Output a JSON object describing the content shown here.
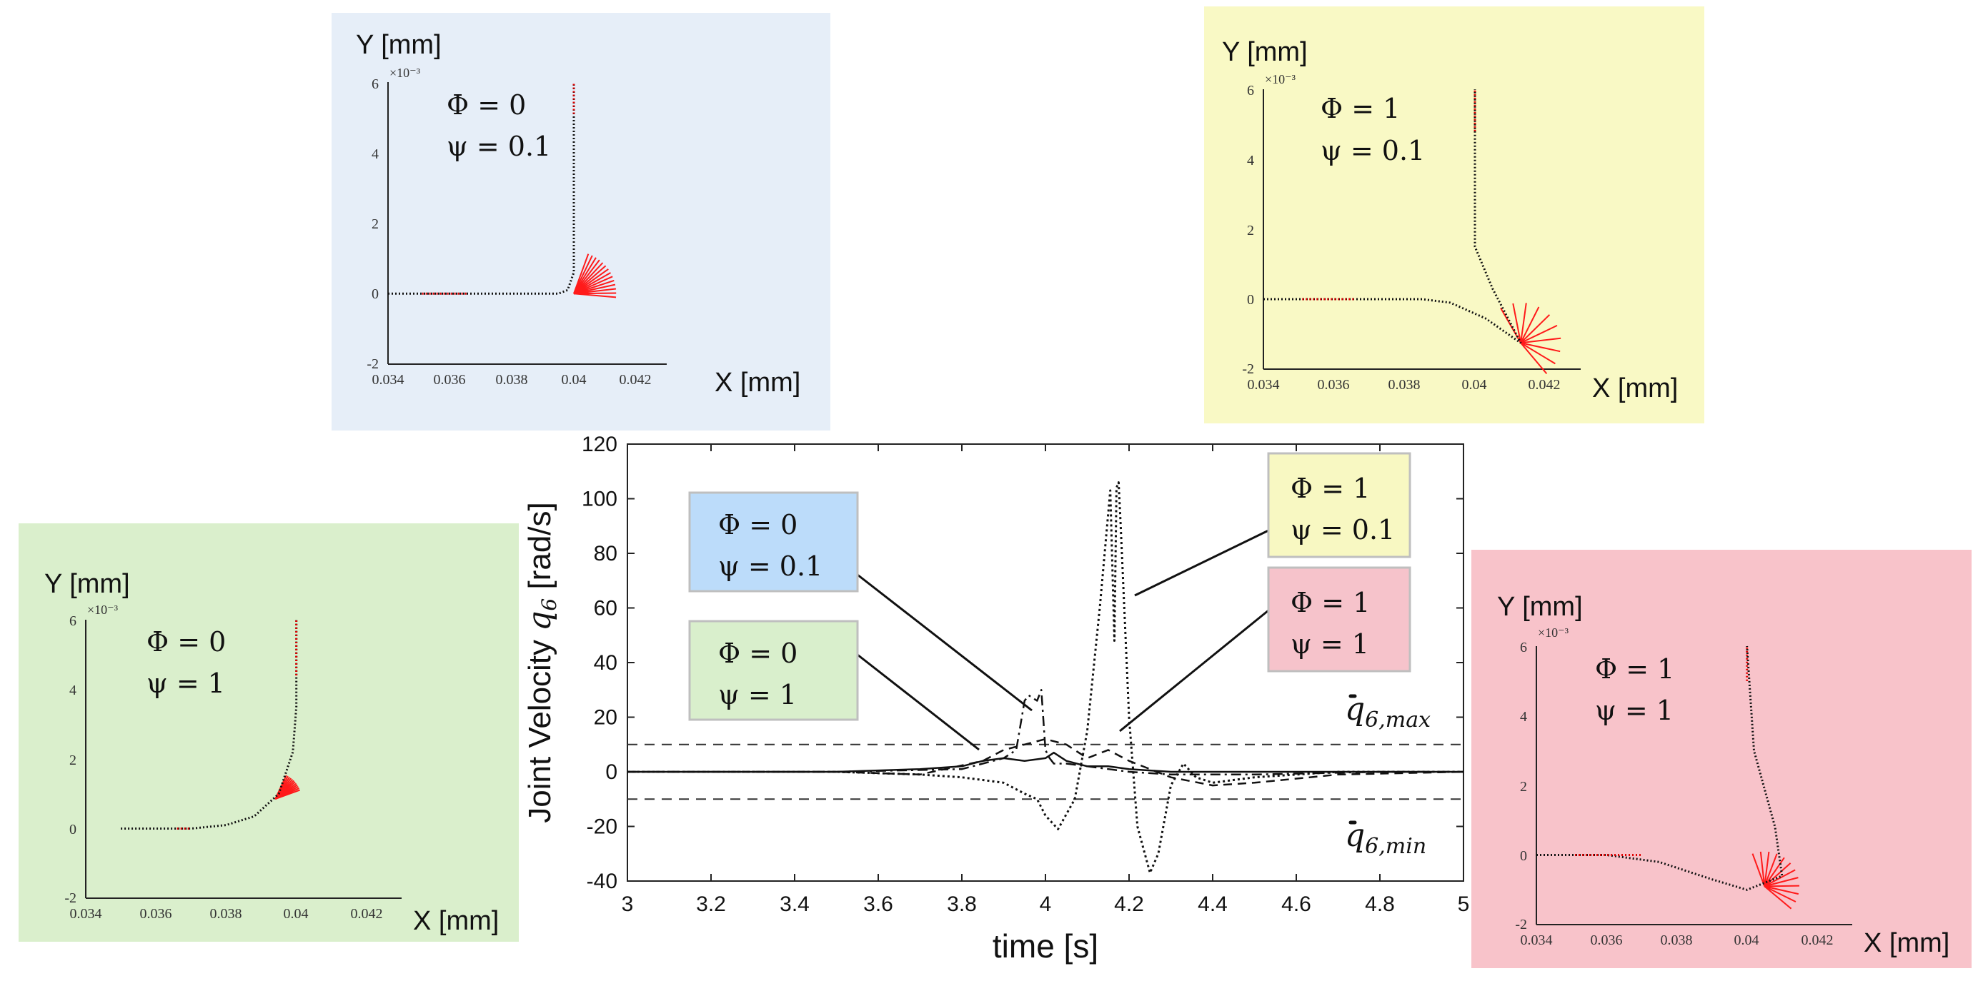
{
  "chart_data": [
    {
      "type": "line",
      "name": "joint-velocity",
      "title": "",
      "xlabel": "time [s]",
      "ylabel": "Joint Velocity q̇₆ [rad/s]",
      "ylabel_parts": {
        "prefix": "Joint Velocity ",
        "symbol": "q",
        "subscript": "6",
        "suffix": " [rad/s]"
      },
      "xlim": [
        3,
        5
      ],
      "ylim": [
        -40,
        120
      ],
      "xticks": [
        3,
        3.2,
        3.4,
        3.6,
        3.8,
        4,
        4.2,
        4.4,
        4.6,
        4.8,
        5
      ],
      "yticks": [
        -40,
        -20,
        0,
        20,
        40,
        60,
        80,
        100,
        120
      ],
      "limits": [
        {
          "name": "q6,max",
          "symbol": "q",
          "subscript": "6,max",
          "value": 10
        },
        {
          "name": "q6,min",
          "symbol": "q",
          "subscript": "6,min",
          "value": -10
        }
      ],
      "series": [
        {
          "name": "Φ = 0, ψ = 0.1",
          "style": "dashdot",
          "x": [
            3,
            3.5,
            3.8,
            3.9,
            3.93,
            3.95,
            3.96,
            3.97,
            3.98,
            3.99,
            4.0,
            4.01,
            4.02,
            4.05,
            4.1,
            4.2,
            4.3,
            4.5,
            4.8,
            5
          ],
          "y": [
            0,
            0,
            1,
            5,
            8,
            26,
            28,
            27,
            26,
            30,
            8,
            5,
            3,
            3,
            2,
            0,
            -1,
            -1,
            0,
            0
          ]
        },
        {
          "name": "Φ = 0, ψ = 1",
          "style": "solid",
          "x": [
            3,
            3.5,
            3.7,
            3.8,
            3.85,
            3.9,
            3.95,
            4.0,
            4.02,
            4.05,
            4.1,
            4.15,
            4.2,
            4.3,
            4.5,
            4.8,
            5
          ],
          "y": [
            0,
            0,
            1,
            2,
            4,
            5,
            4,
            5,
            7,
            4,
            2,
            2,
            1,
            0,
            0,
            0,
            0
          ]
        },
        {
          "name": "Φ = 1, ψ = 0.1",
          "style": "dotted",
          "x": [
            3,
            3.5,
            3.7,
            3.8,
            3.9,
            3.95,
            3.98,
            4.0,
            4.03,
            4.07,
            4.1,
            4.13,
            4.155,
            4.165,
            4.17,
            4.175,
            4.18,
            4.2,
            4.22,
            4.25,
            4.27,
            4.3,
            4.33,
            4.36,
            4.4,
            4.5,
            4.7,
            5
          ],
          "y": [
            0,
            0,
            -1,
            -2,
            -4,
            -8,
            -10,
            -16,
            -21,
            -10,
            15,
            60,
            103,
            48,
            104,
            106,
            90,
            20,
            -20,
            -37,
            -30,
            -5,
            3,
            -2,
            -4,
            -2,
            0,
            0
          ]
        },
        {
          "name": "Φ = 1, ψ = 1",
          "style": "dashed",
          "x": [
            3,
            3.5,
            3.7,
            3.85,
            3.9,
            3.95,
            4.0,
            4.05,
            4.1,
            4.15,
            4.2,
            4.3,
            4.4,
            4.5,
            4.7,
            5
          ],
          "y": [
            0,
            0,
            -1,
            4,
            8,
            10,
            12,
            10,
            5,
            8,
            4,
            -2,
            -5,
            -4,
            -1,
            0
          ]
        }
      ],
      "annotations": [
        {
          "phi": "Φ = 0",
          "psi": "ψ = 0.1",
          "color": "#bcdcfa"
        },
        {
          "phi": "Φ = 0",
          "psi": "ψ = 1",
          "color": "#d9efcc"
        },
        {
          "phi": "Φ = 1",
          "psi": "ψ = 0.1",
          "color": "#f8f8c2"
        },
        {
          "phi": "Φ = 1",
          "psi": "ψ = 1",
          "color": "#f6c3cb"
        }
      ]
    },
    {
      "type": "line",
      "name": "path-phi0-psi01",
      "background": "#e6eef8",
      "phi": "Φ = 0",
      "psi": "ψ = 0.1",
      "xlabel": "X [mm]",
      "ylabel": "Y [mm]",
      "y_exponent": "×10⁻³",
      "xlim": [
        0.034,
        0.043
      ],
      "ylim": [
        -2,
        6
      ],
      "xticks": [
        "0.034",
        "0.036",
        "0.038",
        "0.04",
        "0.042"
      ],
      "yticks": [
        "-2",
        "0",
        "2",
        "4",
        "6"
      ],
      "path": [
        [
          0.034,
          0
        ],
        [
          0.0395,
          0
        ],
        [
          0.0398,
          0.1
        ],
        [
          0.04,
          0.6
        ],
        [
          0.04,
          6
        ]
      ],
      "red_x_segments": [
        [
          0.0351,
          0.0366
        ]
      ],
      "red_y_segments": [
        [
          5.1,
          6
        ]
      ],
      "fan": {
        "origin": [
          0.04,
          0
        ],
        "count": 14,
        "angle_start": -5,
        "angle_end": 70,
        "length": 1.2
      }
    },
    {
      "type": "line",
      "name": "path-phi1-psi01",
      "background": "#f9f9c5",
      "phi": "Φ = 1",
      "psi": "ψ = 0.1",
      "xlabel": "X [mm]",
      "ylabel": "Y [mm]",
      "y_exponent": "×10⁻³",
      "xlim": [
        0.034,
        0.043
      ],
      "ylim": [
        -2,
        6
      ],
      "xticks": [
        "0.034",
        "0.036",
        "0.038",
        "0.04",
        "0.042"
      ],
      "yticks": [
        "-2",
        "0",
        "2",
        "4",
        "6"
      ],
      "path": [
        [
          0.034,
          0
        ],
        [
          0.0385,
          0
        ],
        [
          0.0393,
          -0.1
        ],
        [
          0.0403,
          -0.55
        ],
        [
          0.0413,
          -1.25
        ],
        [
          0.0405,
          0.3
        ],
        [
          0.04,
          1.5
        ],
        [
          0.04,
          6
        ]
      ],
      "red_x_segments": [
        [
          0.0351,
          0.0366
        ]
      ],
      "red_y_segments": [
        [
          4.8,
          6
        ]
      ],
      "fan": {
        "origin": [
          0.0413,
          -1.25
        ],
        "count": 10,
        "angle_start": -50,
        "angle_end": 120,
        "length": 1.15
      }
    },
    {
      "type": "line",
      "name": "path-phi0-psi1",
      "background": "#daefcc",
      "phi": "Φ = 0",
      "psi": "ψ = 1",
      "xlabel": "X [mm]",
      "ylabel": "Y [mm]",
      "y_exponent": "×10⁻³",
      "xlim": [
        0.034,
        0.043
      ],
      "ylim": [
        -2,
        6
      ],
      "xticks": [
        "0.034",
        "0.036",
        "0.038",
        "0.04",
        "0.042"
      ],
      "yticks": [
        "-2",
        "0",
        "2",
        "4",
        "6"
      ],
      "path": [
        [
          0.035,
          0
        ],
        [
          0.037,
          0
        ],
        [
          0.038,
          0.1
        ],
        [
          0.0388,
          0.35
        ],
        [
          0.0395,
          1.0
        ],
        [
          0.0399,
          2.2
        ],
        [
          0.04,
          3.5
        ],
        [
          0.04,
          6
        ]
      ],
      "red_x_segments": [
        [
          0.0366,
          0.037
        ]
      ],
      "red_y_segments": [
        [
          4.4,
          6
        ]
      ],
      "fan": {
        "origin": [
          0.0394,
          0.85
        ],
        "count": 12,
        "angle_start": 20,
        "angle_end": 65,
        "length": 0.75
      }
    },
    {
      "type": "line",
      "name": "path-phi1-psi1",
      "background": "#f8c3ca",
      "phi": "Φ = 1",
      "psi": "ψ = 1",
      "xlabel": "X [mm]",
      "ylabel": "Y [mm]",
      "y_exponent": "×10⁻³",
      "xlim": [
        0.034,
        0.043
      ],
      "ylim": [
        -2,
        6
      ],
      "xticks": [
        "0.034",
        "0.036",
        "0.038",
        "0.04",
        "0.042"
      ],
      "yticks": [
        "-2",
        "0",
        "2",
        "4",
        "6"
      ],
      "path": [
        [
          0.034,
          0
        ],
        [
          0.036,
          0
        ],
        [
          0.0375,
          -0.2
        ],
        [
          0.039,
          -0.7
        ],
        [
          0.04,
          -1.0
        ],
        [
          0.041,
          -0.6
        ],
        [
          0.0408,
          0.8
        ],
        [
          0.0402,
          3.0
        ],
        [
          0.04,
          6
        ]
      ],
      "red_x_segments": [
        [
          0.0351,
          0.037
        ]
      ],
      "red_y_segments": [
        [
          5,
          6
        ]
      ],
      "fan": {
        "origin": [
          0.0405,
          -0.9
        ],
        "count": 12,
        "angle_start": -40,
        "angle_end": 110,
        "length": 1.0
      }
    }
  ]
}
